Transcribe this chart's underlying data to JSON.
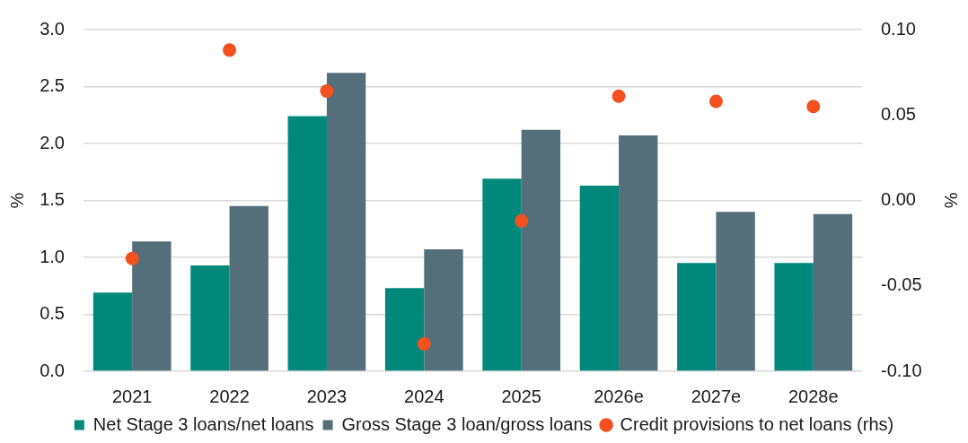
{
  "chart_data": {
    "type": "bar",
    "categories": [
      "2021",
      "2022",
      "2023",
      "2024",
      "2025",
      "2026e",
      "2027e",
      "2028e"
    ],
    "series": [
      {
        "name": "Net Stage 3 loans/net loans",
        "color": "#00897b",
        "values": [
          0.69,
          0.93,
          2.24,
          0.73,
          1.69,
          1.63,
          0.95,
          0.95
        ]
      },
      {
        "name": "Gross Stage 3 loan/gross loans",
        "color": "#546e7a",
        "values": [
          1.14,
          1.45,
          2.62,
          1.07,
          2.12,
          2.07,
          1.4,
          1.38
        ]
      },
      {
        "name": "Credit provisions to net loans (rhs)",
        "type": "scatter",
        "axis": "y2",
        "color": "#f4511e",
        "values": [
          -0.034,
          0.088,
          0.064,
          -0.084,
          -0.012,
          0.061,
          0.058,
          0.055
        ]
      }
    ],
    "ylabel": "%",
    "y2label": "%",
    "ylim": [
      0,
      3
    ],
    "yticks": [
      {
        "value": 0,
        "label": "0.0"
      },
      0.5,
      {
        "value": 1,
        "label": "1.0"
      },
      1.5,
      {
        "value": 2,
        "label": "2.0"
      },
      2.5,
      {
        "value": 3,
        "label": "3.0"
      }
    ],
    "y2lim": [
      -0.1,
      0.1
    ],
    "y2ticks": [
      {
        "value": -0.1,
        "label": "-0.10"
      },
      {
        "value": -0.05,
        "label": "-0.05"
      },
      {
        "value": 0,
        "label": "0.00"
      },
      {
        "value": 0.05,
        "label": "0.05"
      },
      {
        "value": 0.1,
        "label": "0.10"
      }
    ],
    "grid": "y",
    "legend": "bottom",
    "marker": "circle"
  }
}
